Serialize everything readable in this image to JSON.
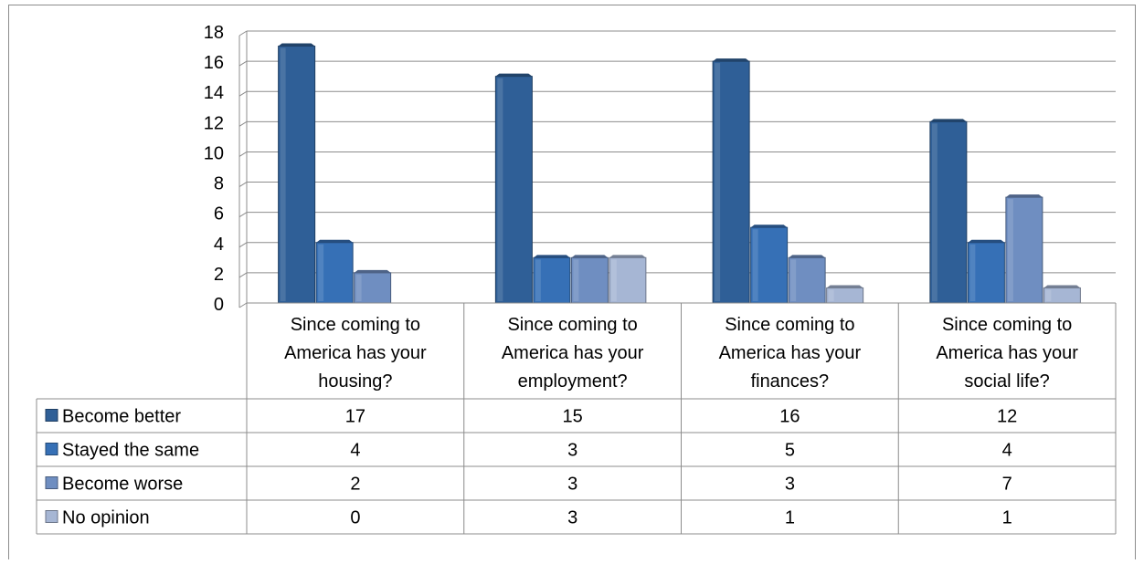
{
  "chart_data": {
    "type": "bar",
    "title": "",
    "xlabel": "",
    "ylabel": "",
    "ylim": [
      0,
      18
    ],
    "y_ticks": [
      0,
      2,
      4,
      6,
      8,
      10,
      12,
      14,
      16,
      18
    ],
    "grid": true,
    "legend": "data-table-left",
    "style": "3d-columns-with-data-table",
    "categories": [
      [
        "Since coming to",
        "America has your",
        "housing?"
      ],
      [
        "Since coming to",
        "America has your",
        "employment?"
      ],
      [
        "Since coming to",
        "America has your",
        "finances?"
      ],
      [
        "Since coming to",
        "America has your",
        "social life?"
      ]
    ],
    "series": [
      {
        "name": "Become better",
        "values": [
          17,
          15,
          16,
          12
        ],
        "color": "#2F5F97"
      },
      {
        "name": "Stayed the same",
        "values": [
          4,
          3,
          5,
          4
        ],
        "color": "#3670B6"
      },
      {
        "name": "Become worse",
        "values": [
          2,
          3,
          3,
          7
        ],
        "color": "#6F8EC1"
      },
      {
        "name": "No opinion",
        "values": [
          0,
          3,
          1,
          1
        ],
        "color": "#A6B6D4"
      }
    ]
  }
}
